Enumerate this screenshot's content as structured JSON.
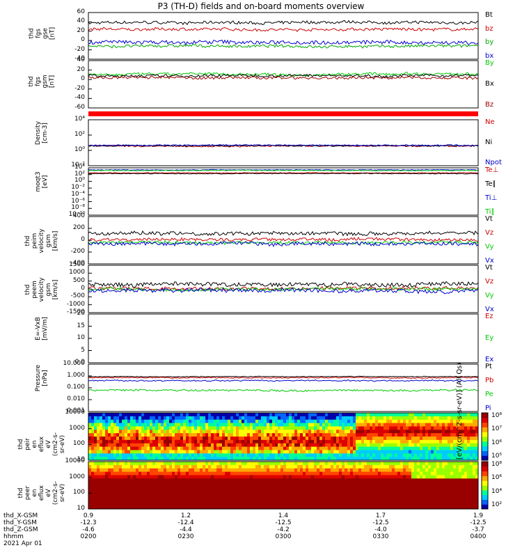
{
  "page": {
    "title": "P3 (TH-D) fields and on-board moments overview"
  },
  "chart_data": [
    {
      "type": "line",
      "panel": "fgs_gse",
      "ylabel": "thd\nfgs\ngse\n[nT]",
      "yticks": [
        "60",
        "40",
        "20",
        "0",
        "-20",
        "-40"
      ],
      "ylim": [
        -40,
        60
      ],
      "series": [
        {
          "name": "Bt",
          "color": "#000000",
          "level": 38,
          "amp": 6
        },
        {
          "name": "bz",
          "color": "#cc0000",
          "level": 24,
          "amp": 6
        },
        {
          "name": "by",
          "color": "#00aa00",
          "level": -12,
          "amp": 6
        },
        {
          "name": "bx",
          "color": "#0000cc",
          "level": -4,
          "amp": 8
        }
      ]
    },
    {
      "type": "line",
      "panel": "fgs_gsm",
      "ylabel": "thd\nfgs\ngsm\n[nT]",
      "yticks": [
        "40",
        "20",
        "0",
        "-20",
        "-40",
        "-60"
      ],
      "ylim": [
        -70,
        40
      ],
      "series": [
        {
          "name": "By",
          "color": "#00cc00",
          "level": 8,
          "amp": 6
        },
        {
          "name": "Bx",
          "color": "#000000",
          "level": 5,
          "amp": 6
        },
        {
          "name": "Bz",
          "color": "#990000",
          "level": 0,
          "amp": 6
        }
      ]
    },
    {
      "type": "line",
      "panel": "density",
      "ylabel": "Density\n[cm-3]",
      "yticks": [
        "10⁴",
        "10²",
        "10⁰",
        "10⁻²"
      ],
      "ylim": [
        -3,
        4
      ],
      "log": true,
      "series": [
        {
          "name": "Ne",
          "color": "#cc0000",
          "level": 0,
          "amp": 0.2
        },
        {
          "name": "Ni",
          "color": "#000000",
          "level": 0.05,
          "amp": 0.2
        },
        {
          "name": "Npot",
          "color": "#0000cc",
          "level": 0.1,
          "amp": 0.2
        }
      ]
    },
    {
      "type": "line",
      "panel": "temperature",
      "ylabel": "moqt3\n[eV]",
      "yticks": [
        "10⁴",
        "10²",
        "10⁰",
        "10⁻²",
        "10⁻⁴",
        "10⁻⁶",
        "10⁻⁸",
        "10⁻¹⁰"
      ],
      "ylim": [
        -10,
        4
      ],
      "log": true,
      "series": [
        {
          "name": "Te⊥",
          "color": "#cc0000",
          "level": 2.5,
          "amp": 0.2
        },
        {
          "name": "Te∥",
          "color": "#000000",
          "level": 2.3,
          "amp": 0.2
        },
        {
          "name": "Ti⊥",
          "color": "#0000cc",
          "level": 3.4,
          "amp": 0.2
        },
        {
          "name": "Ti∥",
          "color": "#00cc00",
          "level": 3.2,
          "amp": 0.2
        }
      ]
    },
    {
      "type": "line",
      "panel": "peim_velocity",
      "ylabel": "thd\npeim\nvelocity\ngsm\n[km/s]",
      "yticks": [
        "400",
        "200",
        "0",
        "-200",
        "-400"
      ],
      "ylim": [
        -400,
        400
      ],
      "series": [
        {
          "name": "Vt",
          "color": "#000000",
          "level": 120,
          "amp": 60
        },
        {
          "name": "Vz",
          "color": "#cc0000",
          "level": 10,
          "amp": 50
        },
        {
          "name": "Vy",
          "color": "#00cc00",
          "level": -40,
          "amp": 50
        },
        {
          "name": "Vx",
          "color": "#0000cc",
          "level": -60,
          "amp": 60
        }
      ]
    },
    {
      "type": "line",
      "panel": "peem_velocity",
      "ylabel": "thd\npeem\nvelocity\ngsm\n[km/s]",
      "yticks": [
        "1500",
        "1000",
        "500",
        "0",
        "-500",
        "-1000",
        "-1500"
      ],
      "ylim": [
        -1500,
        1500
      ],
      "series": [
        {
          "name": "Vt",
          "color": "#000000",
          "level": 300,
          "amp": 250
        },
        {
          "name": "Vz",
          "color": "#cc0000",
          "level": 50,
          "amp": 200
        },
        {
          "name": "Vy",
          "color": "#00cc00",
          "level": -20,
          "amp": 200
        },
        {
          "name": "Vx",
          "color": "#0000cc",
          "level": -100,
          "amp": 250
        }
      ]
    },
    {
      "type": "line",
      "panel": "efield",
      "ylabel": "E=-VxB\n[mV/m]",
      "yticks": [
        "20",
        "15",
        "10",
        "5",
        "0.0"
      ],
      "ylim": [
        0,
        20
      ],
      "series": [
        {
          "name": "Ez",
          "color": "#cc0000",
          "level": null,
          "amp": 0
        },
        {
          "name": "Ey",
          "color": "#00cc00",
          "level": null,
          "amp": 0
        },
        {
          "name": "Ex",
          "color": "#0000cc",
          "level": null,
          "amp": 0
        }
      ]
    },
    {
      "type": "line",
      "panel": "pressure",
      "ylabel": "Pressure\n[nPa]",
      "yticks": [
        "10.000",
        "1.000",
        "0.100",
        "0.010",
        "0.001"
      ],
      "ylim": [
        -3,
        1
      ],
      "log": true,
      "series": [
        {
          "name": "Pt",
          "color": "#000000",
          "level": -0.05,
          "amp": 0.05
        },
        {
          "name": "Pb",
          "color": "#cc0000",
          "level": -0.15,
          "amp": 0.08
        },
        {
          "name": "Pe",
          "color": "#00cc00",
          "level": -1.2,
          "amp": 0.15
        },
        {
          "name": "Pi",
          "color": "#0000cc",
          "level": -0.4,
          "amp": 0.1
        }
      ]
    },
    {
      "type": "heatmap",
      "panel": "peir",
      "ylabel": "thd\npeir\nen\neflux\neV\n(cm2-s-\nsr-eV)",
      "yticks": [
        "10000",
        "1000",
        "100",
        "10"
      ],
      "colorbar": [
        "10⁸",
        "10⁷",
        "10⁶",
        "10⁵"
      ]
    },
    {
      "type": "heatmap",
      "panel": "peer",
      "ylabel": "thd\npeer\nen\neflux\neV\n(cm2-s-\nsr-eV)",
      "yticks": [
        "10000",
        "1000",
        "100",
        "10"
      ],
      "colorbar": [
        "10⁸",
        "10⁶",
        "10⁴",
        "10²"
      ]
    }
  ],
  "colorbar_label": "[eV/(cm^2-s-sr-eV)] (All Qs)",
  "xaxis": {
    "rows": [
      {
        "label": "thd_X-GSM",
        "values": [
          "0.9",
          "1.2",
          "1.4",
          "1.7",
          "1.9"
        ]
      },
      {
        "label": "thd_Y-GSM",
        "values": [
          "-12.3",
          "-12.4",
          "-12.5",
          "-12.5",
          "-12.5"
        ]
      },
      {
        "label": "thd_Z-GSM",
        "values": [
          "-4.6",
          "-4.4",
          "-4.2",
          "-4.0",
          "-3.7"
        ]
      },
      {
        "label": "hhmm",
        "values": [
          "0200",
          "0230",
          "0300",
          "0330",
          "0400"
        ]
      }
    ],
    "date": "2021 Apr 01"
  }
}
